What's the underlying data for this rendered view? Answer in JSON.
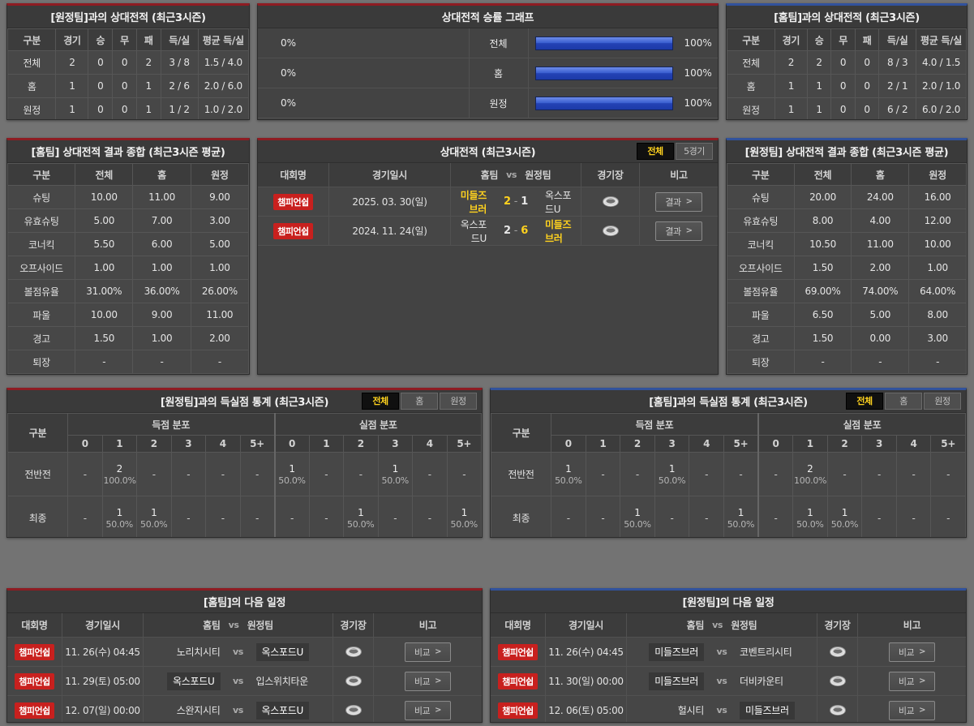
{
  "ui": {
    "chevron": ">",
    "vs": "vs"
  },
  "colors": {
    "accent_home_red": "#8e1c22",
    "accent_away_blue": "#31529c",
    "bar_blue": "#2f55cc",
    "highlight_yellow": "#ffd21e",
    "badge_red": "#c8201e",
    "active_tab_bg": "#101010",
    "active_tab_text": "#ffd21e"
  },
  "panels": {
    "vs_away_record": {
      "title": "[원정팀]과의 상대전적 (최근3시즌)",
      "headers": [
        "구분",
        "경기",
        "승",
        "무",
        "패",
        "득/실",
        "평균 득/실"
      ],
      "rows": [
        {
          "label": "전체",
          "values": [
            "2",
            "0",
            "0",
            "2",
            "3 / 8",
            "1.5 / 4.0"
          ]
        },
        {
          "label": "홈",
          "values": [
            "1",
            "0",
            "0",
            "1",
            "2 / 6",
            "2.0 / 6.0"
          ]
        },
        {
          "label": "원정",
          "values": [
            "1",
            "0",
            "0",
            "1",
            "1 / 2",
            "1.0 / 2.0"
          ]
        }
      ]
    },
    "win_graph": {
      "title": "상대전적 승률 그래프",
      "rows": [
        {
          "label": "전체",
          "left_label": "0%",
          "left_value": 0,
          "right_label": "100%",
          "right_value": 100
        },
        {
          "label": "홈",
          "left_label": "0%",
          "left_value": 0,
          "right_label": "100%",
          "right_value": 100
        },
        {
          "label": "원정",
          "left_label": "0%",
          "left_value": 0,
          "right_label": "100%",
          "right_value": 100
        }
      ]
    },
    "vs_home_record": {
      "title": "[홈팀]과의 상대전적 (최근3시즌)",
      "headers": [
        "구분",
        "경기",
        "승",
        "무",
        "패",
        "득/실",
        "평균 득/실"
      ],
      "rows": [
        {
          "label": "전체",
          "values": [
            "2",
            "2",
            "0",
            "0",
            "8 / 3",
            "4.0 / 1.5"
          ]
        },
        {
          "label": "홈",
          "values": [
            "1",
            "1",
            "0",
            "0",
            "2 / 1",
            "2.0 / 1.0"
          ]
        },
        {
          "label": "원정",
          "values": [
            "1",
            "1",
            "0",
            "0",
            "6 / 2",
            "6.0 / 2.0"
          ]
        }
      ]
    },
    "home_summary": {
      "title": "[홈팀] 상대전적 결과 종합 (최근3시즌 평균)",
      "headers": [
        "구분",
        "전체",
        "홈",
        "원정"
      ],
      "rows": [
        {
          "label": "슈팅",
          "values": [
            "10.00",
            "11.00",
            "9.00"
          ]
        },
        {
          "label": "유효슈팅",
          "values": [
            "5.00",
            "7.00",
            "3.00"
          ]
        },
        {
          "label": "코너킥",
          "values": [
            "5.50",
            "6.00",
            "5.00"
          ]
        },
        {
          "label": "오프사이드",
          "values": [
            "1.00",
            "1.00",
            "1.00"
          ]
        },
        {
          "label": "볼점유율",
          "values": [
            "31.00%",
            "36.00%",
            "26.00%"
          ]
        },
        {
          "label": "파울",
          "values": [
            "10.00",
            "9.00",
            "11.00"
          ]
        },
        {
          "label": "경고",
          "values": [
            "1.50",
            "1.00",
            "2.00"
          ]
        },
        {
          "label": "퇴장",
          "values": [
            "-",
            "-",
            "-"
          ]
        }
      ]
    },
    "h2h_matches": {
      "title": "상대전적 (최근3시즌)",
      "tabs": [
        {
          "name": "all",
          "label": "전체",
          "active": true
        },
        {
          "name": "5games",
          "label": "5경기",
          "active": false
        }
      ],
      "headers": {
        "league": "대회명",
        "date": "경기일시",
        "home": "홈팀",
        "vs": "vs",
        "away": "원정팀",
        "stadium": "경기장",
        "note": "비고"
      },
      "button_label": "결과",
      "rows": [
        {
          "league": "챔피언쉽",
          "date": "2025. 03. 30(일)",
          "home": "미들즈브러",
          "home_hl": true,
          "home_score": "2",
          "home_score_hl": true,
          "away_score": "1",
          "away_score_hl": false,
          "away": "옥스포드U",
          "away_hl": false
        },
        {
          "league": "챔피언쉽",
          "date": "2024. 11. 24(일)",
          "home": "옥스포드U",
          "home_hl": false,
          "home_score": "2",
          "home_score_hl": false,
          "away_score": "6",
          "away_score_hl": true,
          "away": "미들즈브러",
          "away_hl": true
        }
      ]
    },
    "away_summary": {
      "title": "[원정팀] 상대전적 결과 종합 (최근3시즌 평균)",
      "headers": [
        "구분",
        "전체",
        "홈",
        "원정"
      ],
      "rows": [
        {
          "label": "슈팅",
          "values": [
            "20.00",
            "24.00",
            "16.00"
          ]
        },
        {
          "label": "유효슈팅",
          "values": [
            "8.00",
            "4.00",
            "12.00"
          ]
        },
        {
          "label": "코너킥",
          "values": [
            "10.50",
            "11.00",
            "10.00"
          ]
        },
        {
          "label": "오프사이드",
          "values": [
            "1.50",
            "2.00",
            "1.00"
          ]
        },
        {
          "label": "볼점유율",
          "values": [
            "69.00%",
            "74.00%",
            "64.00%"
          ]
        },
        {
          "label": "파울",
          "values": [
            "6.50",
            "5.00",
            "8.00"
          ]
        },
        {
          "label": "경고",
          "values": [
            "1.50",
            "0.00",
            "3.00"
          ]
        },
        {
          "label": "퇴장",
          "values": [
            "-",
            "-",
            "-"
          ]
        }
      ]
    },
    "goal_stats_vs_away": {
      "title": "[원정팀]과의 득실점 통계 (최근3시즌)",
      "tabs": [
        {
          "name": "all",
          "label": "전체",
          "active": true
        },
        {
          "name": "home",
          "label": "홈",
          "active": false
        },
        {
          "name": "away",
          "label": "원정",
          "active": false
        }
      ],
      "headers": {
        "group": "구분",
        "scored": "득점 분포",
        "conceded": "실점 분포",
        "cols": [
          "0",
          "1",
          "2",
          "3",
          "4",
          "5+"
        ]
      },
      "rows": [
        {
          "label": "전반전",
          "scored": [
            null,
            {
              "n": "2",
              "p": "100.0%"
            },
            null,
            null,
            null,
            null
          ],
          "conceded": [
            {
              "n": "1",
              "p": "50.0%"
            },
            null,
            null,
            {
              "n": "1",
              "p": "50.0%"
            },
            null,
            null
          ]
        },
        {
          "label": "최종",
          "scored": [
            null,
            {
              "n": "1",
              "p": "50.0%"
            },
            {
              "n": "1",
              "p": "50.0%"
            },
            null,
            null,
            null
          ],
          "conceded": [
            null,
            null,
            {
              "n": "1",
              "p": "50.0%"
            },
            null,
            null,
            {
              "n": "1",
              "p": "50.0%"
            }
          ]
        }
      ]
    },
    "goal_stats_vs_home": {
      "title": "[홈팀]과의 득실점 통계 (최근3시즌)",
      "tabs": [
        {
          "name": "all",
          "label": "전체",
          "active": true
        },
        {
          "name": "home",
          "label": "홈",
          "active": false
        },
        {
          "name": "away",
          "label": "원정",
          "active": false
        }
      ],
      "headers": {
        "group": "구분",
        "scored": "득점 분포",
        "conceded": "실점 분포",
        "cols": [
          "0",
          "1",
          "2",
          "3",
          "4",
          "5+"
        ]
      },
      "rows": [
        {
          "label": "전반전",
          "scored": [
            {
              "n": "1",
              "p": "50.0%"
            },
            null,
            null,
            {
              "n": "1",
              "p": "50.0%"
            },
            null,
            null
          ],
          "conceded": [
            null,
            {
              "n": "2",
              "p": "100.0%"
            },
            null,
            null,
            null,
            null
          ]
        },
        {
          "label": "최종",
          "scored": [
            null,
            null,
            {
              "n": "1",
              "p": "50.0%"
            },
            null,
            null,
            {
              "n": "1",
              "p": "50.0%"
            }
          ],
          "conceded": [
            null,
            {
              "n": "1",
              "p": "50.0%"
            },
            {
              "n": "1",
              "p": "50.0%"
            },
            null,
            null,
            null
          ]
        }
      ]
    },
    "schedule_home": {
      "title": "[홈팀]의 다음 일정",
      "headers": {
        "league": "대회명",
        "date": "경기일시",
        "home": "홈팀",
        "vs": "vs",
        "away": "원정팀",
        "stadium": "경기장",
        "note": "비고"
      },
      "button_label": "비교",
      "rows": [
        {
          "league": "챔피언쉽",
          "date": "11. 26(수) 04:45",
          "home": "노리치시티",
          "home_box": false,
          "away": "옥스포드U",
          "away_box": true
        },
        {
          "league": "챔피언쉽",
          "date": "11. 29(토) 05:00",
          "home": "옥스포드U",
          "home_box": true,
          "away": "입스위치타운",
          "away_box": false
        },
        {
          "league": "챔피언쉽",
          "date": "12. 07(일) 00:00",
          "home": "스완지시티",
          "home_box": false,
          "away": "옥스포드U",
          "away_box": true
        }
      ]
    },
    "schedule_away": {
      "title": "[원정팀]의 다음 일정",
      "headers": {
        "league": "대회명",
        "date": "경기일시",
        "home": "홈팀",
        "vs": "vs",
        "away": "원정팀",
        "stadium": "경기장",
        "note": "비고"
      },
      "button_label": "비교",
      "rows": [
        {
          "league": "챔피언쉽",
          "date": "11. 26(수) 04:45",
          "home": "미들즈브러",
          "home_box": true,
          "away": "코벤트리시티",
          "away_box": false
        },
        {
          "league": "챔피언쉽",
          "date": "11. 30(일) 00:00",
          "home": "미들즈브러",
          "home_box": true,
          "away": "더비카운티",
          "away_box": false
        },
        {
          "league": "챔피언쉽",
          "date": "12. 06(토) 05:00",
          "home": "헐시티",
          "home_box": false,
          "away": "미들즈브러",
          "away_box": true
        }
      ]
    }
  }
}
